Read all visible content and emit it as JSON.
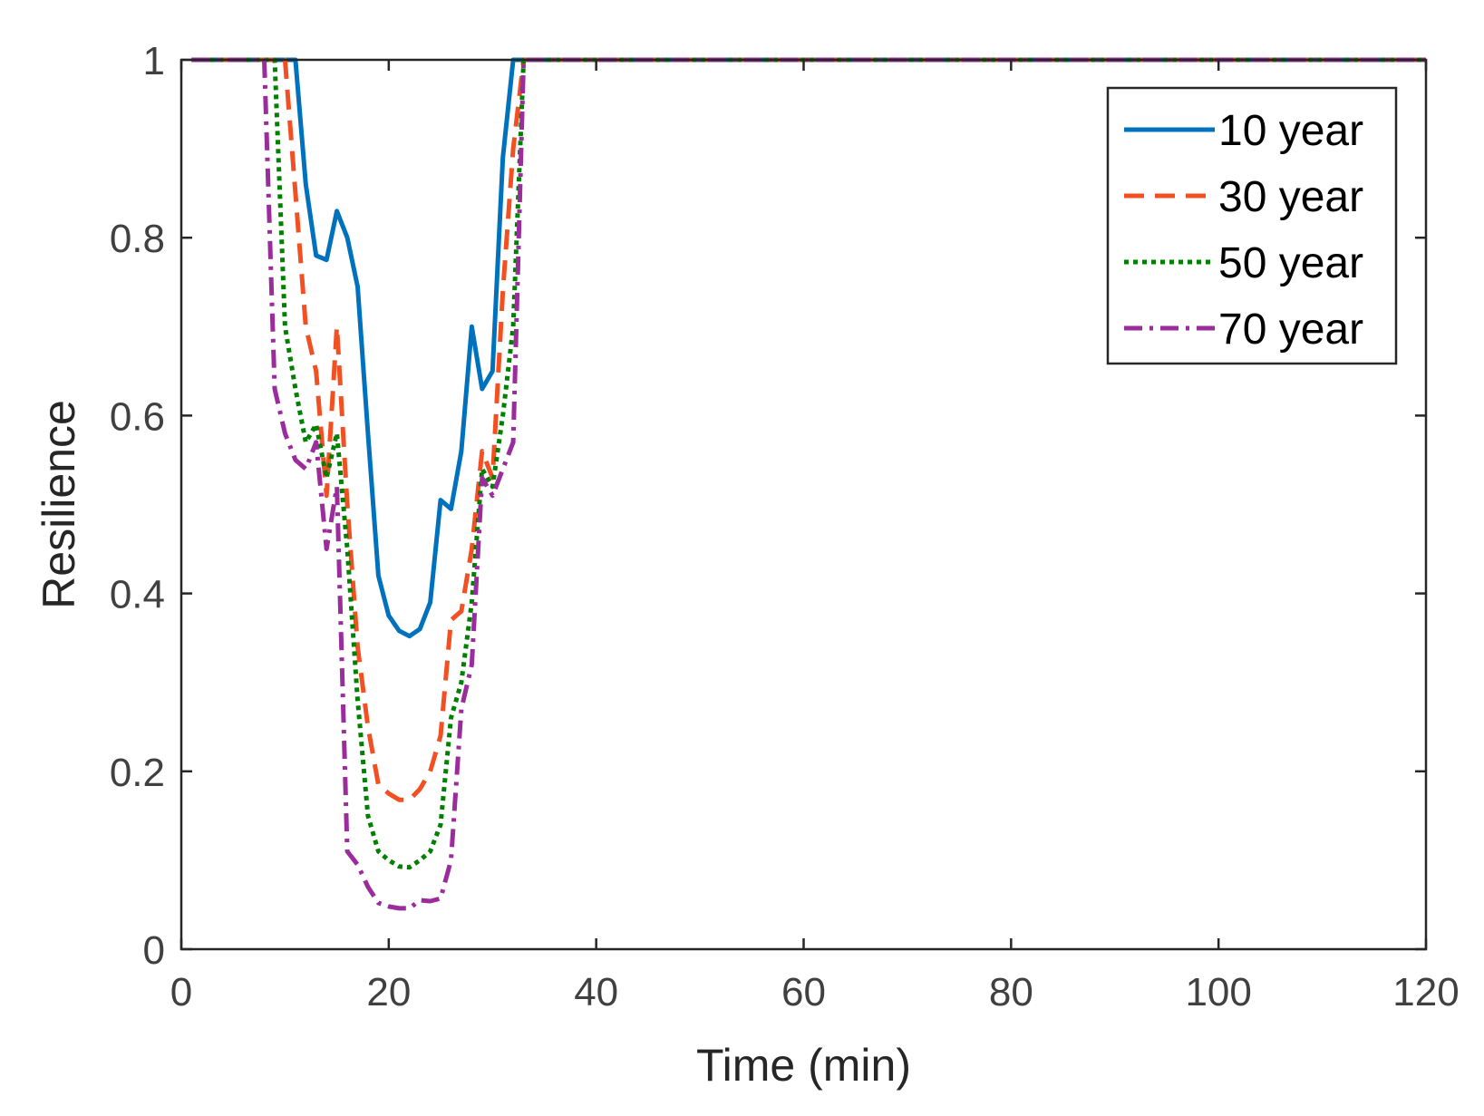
{
  "chart_data": {
    "type": "line",
    "title": "",
    "xlabel": "Time (min)",
    "ylabel": "Resilience",
    "xlim": [
      0,
      120
    ],
    "ylim": [
      0,
      1
    ],
    "xticks": [
      0,
      20,
      40,
      60,
      80,
      100,
      120
    ],
    "yticks": [
      0,
      0.2,
      0.4,
      0.6,
      0.8,
      1
    ],
    "ytick_labels": [
      "0",
      "0.2",
      "0.4",
      "0.6",
      "0.8",
      "1"
    ],
    "grid": false,
    "legend_position": "top-right",
    "series": [
      {
        "name": "10 year",
        "color": "#0072BD",
        "style": "solid",
        "x": [
          1,
          8,
          11,
          12,
          13,
          14,
          15,
          16,
          17,
          18,
          19,
          20,
          21,
          22,
          23,
          24,
          25,
          26,
          27,
          28,
          29,
          30,
          31,
          32,
          33,
          60,
          120
        ],
        "y": [
          1,
          1,
          1,
          0.86,
          0.78,
          0.775,
          0.83,
          0.8,
          0.745,
          0.58,
          0.42,
          0.375,
          0.358,
          0.352,
          0.36,
          0.39,
          0.505,
          0.495,
          0.56,
          0.7,
          0.63,
          0.65,
          0.89,
          1,
          1,
          1,
          1
        ]
      },
      {
        "name": "30 year",
        "color": "#F25022",
        "style": "dashed",
        "x": [
          1,
          9,
          10,
          11,
          12,
          13,
          14,
          15,
          16,
          17,
          18,
          19,
          20,
          21,
          22,
          23,
          24,
          25,
          26,
          27,
          28,
          29,
          30,
          31,
          32,
          33,
          60,
          120
        ],
        "y": [
          1,
          1,
          1,
          0.85,
          0.7,
          0.65,
          0.51,
          0.7,
          0.5,
          0.34,
          0.25,
          0.185,
          0.175,
          0.168,
          0.168,
          0.18,
          0.2,
          0.24,
          0.37,
          0.38,
          0.45,
          0.56,
          0.53,
          0.74,
          0.9,
          1,
          1,
          1
        ]
      },
      {
        "name": "50 year",
        "color": "#008000",
        "style": "dotted",
        "x": [
          1,
          8,
          9,
          10,
          11,
          12,
          13,
          14,
          15,
          16,
          17,
          18,
          19,
          20,
          21,
          22,
          23,
          24,
          25,
          26,
          27,
          28,
          29,
          30,
          31,
          32,
          33,
          60,
          120
        ],
        "y": [
          1,
          1,
          1,
          0.7,
          0.63,
          0.57,
          0.59,
          0.53,
          0.58,
          0.45,
          0.28,
          0.15,
          0.11,
          0.1,
          0.093,
          0.092,
          0.1,
          0.11,
          0.14,
          0.26,
          0.3,
          0.39,
          0.54,
          0.52,
          0.6,
          0.7,
          1,
          1,
          1
        ]
      },
      {
        "name": "70 year",
        "color": "#9A2C9C",
        "style": "dashdot",
        "x": [
          1,
          8,
          9,
          10,
          11,
          12,
          13,
          14,
          15,
          16,
          17,
          18,
          19,
          20,
          21,
          22,
          23,
          24,
          25,
          26,
          27,
          28,
          29,
          30,
          31,
          32,
          33,
          60,
          120
        ],
        "y": [
          1,
          1,
          0.63,
          0.58,
          0.55,
          0.54,
          0.57,
          0.45,
          0.52,
          0.11,
          0.095,
          0.07,
          0.052,
          0.048,
          0.046,
          0.046,
          0.055,
          0.054,
          0.057,
          0.1,
          0.27,
          0.32,
          0.53,
          0.51,
          0.54,
          0.57,
          1,
          1,
          1
        ]
      }
    ]
  }
}
